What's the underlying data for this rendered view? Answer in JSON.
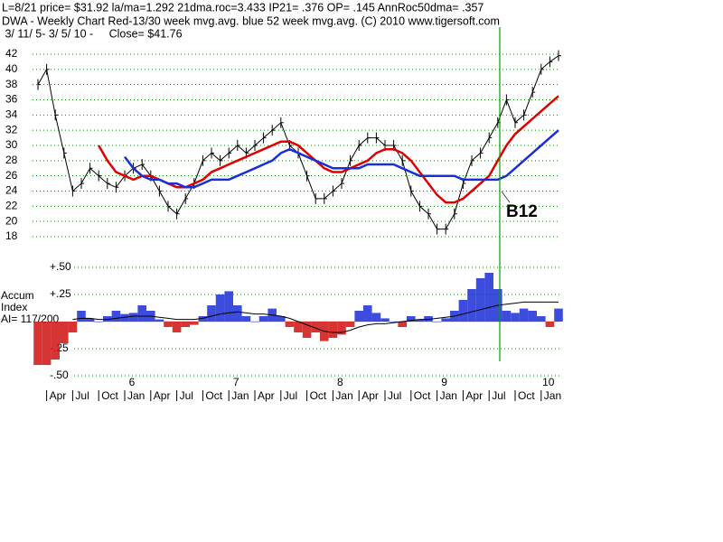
{
  "chart_data": [
    {
      "type": "line",
      "header_lines": [
        "L=8/21  price= $31.92  la/ma=1.292 21dma.roc=3.433 IP21= .376 OP= .145 AnnRoc50dma= .357",
        "DWA  - Weekly Chart  Red-13/30 week mvg.avg.  blue 52 week mvg.avg.  (C) 2010 www.tigersoft.com",
        " 3/ 11/ 5- 3/ 5/ 10 -     Close= $41.76"
      ],
      "annotation": "B12",
      "categories": [
        null,
        "Apr",
        null,
        null,
        "Jul",
        null,
        null,
        "Oct",
        null,
        null,
        "Jan",
        null,
        null,
        "Apr",
        null,
        null,
        "Jul",
        null,
        null,
        "Oct",
        null,
        null,
        "Jan",
        null,
        null,
        "Apr",
        null,
        null,
        "Jul",
        null,
        null,
        "Oct",
        null,
        null,
        "Jan",
        null,
        null,
        "Apr",
        null,
        null,
        "Jul",
        null,
        null,
        "Oct",
        null,
        null,
        "Jan",
        null,
        null,
        "Apr",
        null,
        null,
        "Jul",
        null,
        null,
        "Oct",
        null,
        null,
        "Jan",
        null,
        null
      ],
      "year_labels": [
        "6",
        "7",
        "8",
        "9",
        "10"
      ],
      "series": [
        {
          "name": "price",
          "color": "#000000",
          "values": [
            38,
            40,
            34,
            29,
            24,
            25,
            27,
            26,
            25,
            24.5,
            26,
            27,
            27.5,
            26,
            24,
            22,
            21,
            23,
            25,
            28,
            29,
            28,
            29,
            30,
            29,
            30,
            31,
            32,
            33,
            30,
            29,
            26,
            23,
            23,
            24,
            25,
            28,
            30,
            31,
            31,
            30,
            30,
            28,
            24,
            22,
            21,
            19,
            19,
            21,
            25,
            28,
            29,
            31,
            33,
            36,
            33,
            34,
            37,
            40,
            41,
            41.8
          ]
        },
        {
          "name": "Red-13/30 week mvg.avg.",
          "color": "#e00000",
          "values": [
            null,
            null,
            null,
            null,
            null,
            null,
            null,
            30,
            28,
            26.5,
            26,
            25.5,
            26,
            26,
            25.5,
            25,
            24.5,
            24.5,
            25,
            25.5,
            26.5,
            27,
            27.5,
            28,
            28.5,
            29,
            29.5,
            30,
            30.5,
            30.5,
            30,
            29,
            28,
            27,
            26.5,
            26.5,
            27,
            27.5,
            28,
            29,
            29.5,
            29.5,
            29,
            28,
            26.5,
            25,
            23.5,
            22.5,
            22.5,
            23,
            24,
            25,
            26,
            28,
            30,
            31.5,
            32.5,
            33.5,
            34.5,
            35.5,
            36.5
          ]
        },
        {
          "name": "blue 52 week mvg.avg.",
          "color": "#1a2ed8",
          "values": [
            null,
            null,
            null,
            null,
            null,
            null,
            null,
            null,
            null,
            null,
            28.5,
            27,
            26,
            25.5,
            25.5,
            25,
            25,
            24.5,
            24.5,
            25,
            25.5,
            25.5,
            25.5,
            26,
            26.5,
            27,
            27.5,
            28,
            29,
            29.5,
            29,
            28.5,
            28,
            27.5,
            27,
            27,
            27,
            27,
            27.5,
            27.5,
            27.5,
            27.5,
            27,
            26.5,
            26,
            26,
            26,
            26,
            26,
            25.5,
            25.5,
            25.5,
            25.5,
            25.5,
            26,
            27,
            28,
            29,
            30,
            31,
            32
          ]
        }
      ],
      "ylim": [
        18,
        42
      ],
      "yticks": [
        18,
        20,
        22,
        24,
        26,
        28,
        30,
        32,
        34,
        36,
        38,
        40,
        42
      ],
      "grid": true,
      "grid_color": "#0a8a0a",
      "marker_color": "#0a9a0a"
    },
    {
      "type": "bar",
      "label_lines": [
        "Accum",
        "Index",
        "AI= 117/200"
      ],
      "series": [
        {
          "name": "Accum Index",
          "color": "#1a2ed8",
          "negative_color": "#d01010",
          "values": [
            -0.4,
            -0.4,
            -0.35,
            -0.2,
            -0.1,
            0.1,
            0.03,
            0.0,
            0.05,
            0.1,
            0.07,
            0.08,
            0.15,
            0.1,
            0.02,
            -0.05,
            -0.1,
            -0.05,
            -0.03,
            0.05,
            0.15,
            0.25,
            0.28,
            0.15,
            0.05,
            0.0,
            0.05,
            0.12,
            0.05,
            -0.05,
            -0.1,
            -0.15,
            -0.1,
            -0.18,
            -0.15,
            -0.12,
            -0.05,
            0.1,
            0.15,
            0.08,
            0.03,
            0.0,
            -0.05,
            0.05,
            0.02,
            0.05,
            0.0,
            0.03,
            0.1,
            0.2,
            0.3,
            0.4,
            0.45,
            0.3,
            0.1,
            0.08,
            0.12,
            0.1,
            0.05,
            -0.05,
            0.12
          ]
        },
        {
          "name": "AI mvg.avg.",
          "color": "#000000",
          "values": [
            null,
            null,
            null,
            null,
            0.02,
            0.03,
            0.03,
            0.02,
            0.02,
            0.03,
            0.04,
            0.05,
            0.05,
            0.05,
            0.04,
            0.03,
            0.02,
            0.02,
            0.02,
            0.03,
            0.05,
            0.07,
            0.08,
            0.09,
            0.08,
            0.07,
            0.07,
            0.06,
            0.05,
            0.03,
            0.0,
            -0.03,
            -0.06,
            -0.09,
            -0.1,
            -0.1,
            -0.08,
            -0.05,
            -0.03,
            -0.02,
            -0.02,
            -0.01,
            0.0,
            0.01,
            0.02,
            0.02,
            0.03,
            0.04,
            0.05,
            0.07,
            0.09,
            0.11,
            0.13,
            0.15,
            0.16,
            0.17,
            0.18,
            0.18,
            0.18,
            0.18,
            0.18
          ]
        }
      ],
      "ylim": [
        -0.5,
        0.5
      ],
      "yticks": [
        {
          "value": 0.5,
          "label": "+.50"
        },
        {
          "value": 0.25,
          "label": "+.25"
        },
        {
          "value": -0.25,
          "label": "-.25"
        },
        {
          "value": -0.5,
          "label": "-.50"
        }
      ],
      "grid": true
    }
  ]
}
